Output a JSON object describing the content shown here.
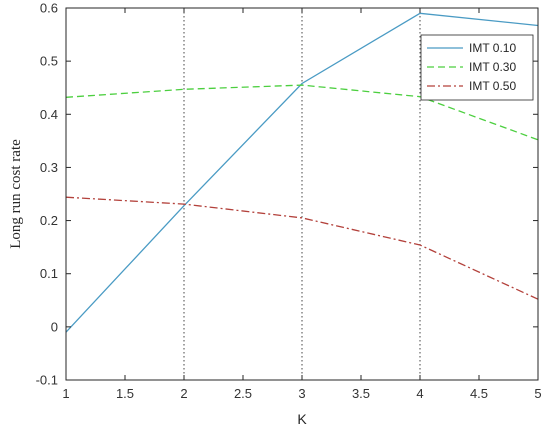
{
  "chart_data": {
    "type": "line",
    "xlabel": "K",
    "ylabel": "Long run cost rate",
    "xlim": [
      1,
      5
    ],
    "ylim": [
      -0.1,
      0.6
    ],
    "xticks": [
      "1",
      "1.5",
      "2",
      "2.5",
      "3",
      "3.5",
      "4",
      "4.5",
      "5"
    ],
    "yticks": [
      "-0.1",
      "0",
      "0.1",
      "0.2",
      "0.3",
      "0.4",
      "0.5",
      "0.6"
    ],
    "grid": false,
    "legend_position": "top-right",
    "vertical_reference_lines": [
      2,
      3,
      4
    ],
    "x": [
      1,
      2,
      3,
      4,
      5
    ],
    "series": [
      {
        "name": "IMT 0.10",
        "values": [
          -0.01,
          0.228,
          0.458,
          0.59,
          0.567
        ],
        "color": "#4a9bc4",
        "dash": "solid"
      },
      {
        "name": "IMT 0.30",
        "values": [
          0.432,
          0.447,
          0.455,
          0.433,
          0.352
        ],
        "color": "#4ccf3f",
        "dash": "dashed"
      },
      {
        "name": "IMT 0.50",
        "values": [
          0.244,
          0.231,
          0.205,
          0.154,
          0.052
        ],
        "color": "#b3413b",
        "dash": "dashdot"
      }
    ]
  }
}
